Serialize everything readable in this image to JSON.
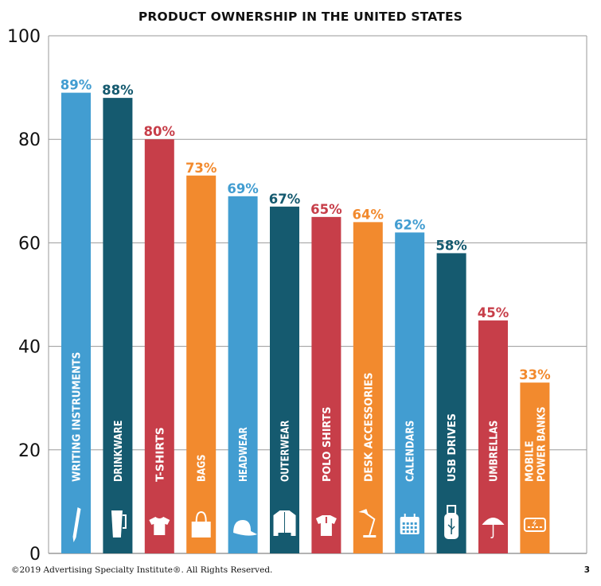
{
  "chart_data": {
    "type": "bar",
    "title": "PRODUCT OWNERSHIP IN THE UNITED STATES",
    "xlabel": "",
    "ylabel": "",
    "ylim": [
      0,
      100
    ],
    "yticks": [
      0,
      20,
      40,
      60,
      80,
      100
    ],
    "grid": true,
    "categories": [
      {
        "label": "WRITING INSTRUMENTS",
        "value": 89,
        "data_label": "89%",
        "color": "#429dd1",
        "icon": "pen-icon"
      },
      {
        "label": "DRINKWARE",
        "value": 88,
        "data_label": "88%",
        "color": "#155a6f",
        "icon": "travel-mug-icon"
      },
      {
        "label": "T-SHIRTS",
        "value": 80,
        "data_label": "80%",
        "color": "#c73e49",
        "icon": "tshirt-icon"
      },
      {
        "label": "BAGS",
        "value": 73,
        "data_label": "73%",
        "color": "#f28a2e",
        "icon": "bag-icon"
      },
      {
        "label": "HEADWEAR",
        "value": 69,
        "data_label": "69%",
        "color": "#429dd1",
        "icon": "cap-icon"
      },
      {
        "label": "OUTERWEAR",
        "value": 67,
        "data_label": "67%",
        "color": "#155a6f",
        "icon": "jacket-icon"
      },
      {
        "label": "POLO SHIRTS",
        "value": 65,
        "data_label": "65%",
        "color": "#c73e49",
        "icon": "polo-shirt-icon"
      },
      {
        "label": "DESK ACCESSORIES",
        "value": 64,
        "data_label": "64%",
        "color": "#f28a2e",
        "icon": "desk-lamp-icon"
      },
      {
        "label": "CALENDARS",
        "value": 62,
        "data_label": "62%",
        "color": "#429dd1",
        "icon": "calendar-icon"
      },
      {
        "label": "USB DRIVES",
        "value": 58,
        "data_label": "58%",
        "color": "#155a6f",
        "icon": "usb-drive-icon"
      },
      {
        "label": "UMBRELLAS",
        "value": 45,
        "data_label": "45%",
        "color": "#c73e49",
        "icon": "umbrella-icon"
      },
      {
        "label": "MOBILE POWER BANKS",
        "label_lines": [
          "MOBILE",
          "POWER BANKS"
        ],
        "value": 33,
        "data_label": "33%",
        "color": "#f28a2e",
        "icon": "power-bank-icon"
      }
    ]
  },
  "footer": {
    "copyright": "©2019 Advertising Specialty Institute®. All Rights Reserved.",
    "page_number": "3"
  }
}
